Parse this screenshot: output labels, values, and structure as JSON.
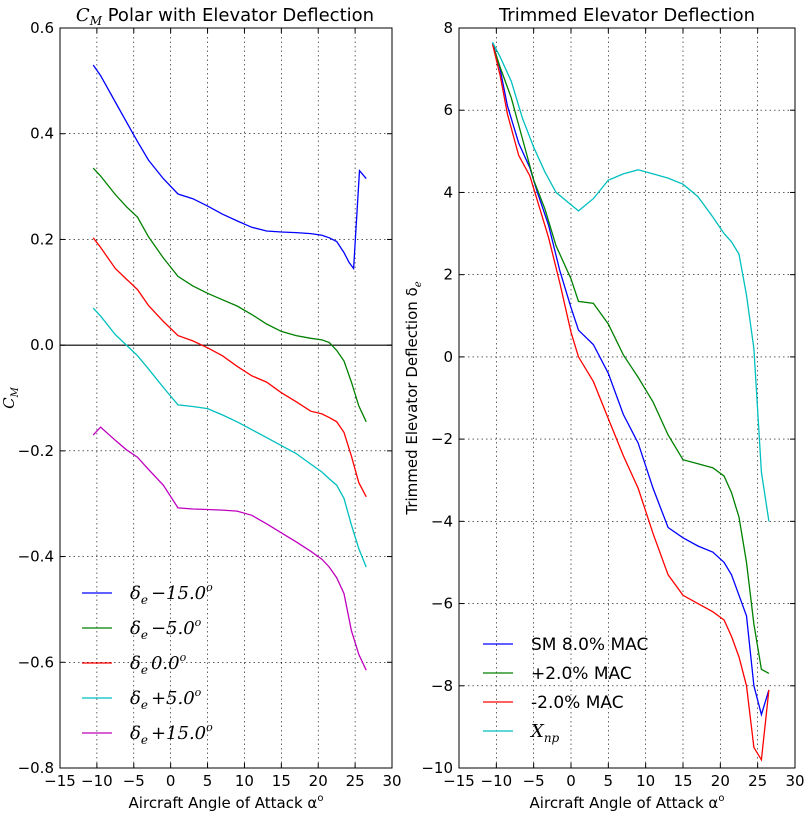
{
  "chart_data": [
    {
      "type": "line",
      "title": "C_M  Polar with Elevator Deflection",
      "title_math": "C",
      "title_math_sub": "M",
      "title_rest": "  Polar with Elevator Deflection",
      "xlabel": "Aircraft Angle of Attack α",
      "xlabel_sup": "o",
      "ylabel": "C",
      "ylabel_sub": "M",
      "xlim": [
        -15,
        30
      ],
      "ylim": [
        -0.8,
        0.6
      ],
      "xticks": [
        "−15",
        "−10",
        "−5",
        "0",
        "5",
        "10",
        "15",
        "20",
        "25",
        "30"
      ],
      "yticks": [
        "−0.8",
        "−0.6",
        "−0.4",
        "−0.2",
        "0.0",
        "0.2",
        "0.4",
        "0.6"
      ],
      "grid": true,
      "zero_line": true,
      "legend_position": "lower-left",
      "series": [
        {
          "name": "δe −15.0°",
          "label_main": "δ",
          "label_sub": "e",
          "label_val": "−15.0",
          "label_sup": "o",
          "color": "#0000ff",
          "points": [
            [
              -10.5,
              0.53
            ],
            [
              -9.5,
              0.51
            ],
            [
              -7.5,
              0.46
            ],
            [
              -5.5,
              0.41
            ],
            [
              -4.5,
              0.385
            ],
            [
              -3,
              0.35
            ],
            [
              -1,
              0.315
            ],
            [
              1,
              0.286
            ],
            [
              3,
              0.277
            ],
            [
              5,
              0.263
            ],
            [
              7,
              0.248
            ],
            [
              9,
              0.235
            ],
            [
              11,
              0.223
            ],
            [
              13,
              0.216
            ],
            [
              15,
              0.214
            ],
            [
              17,
              0.213
            ],
            [
              19,
              0.211
            ],
            [
              20.5,
              0.208
            ],
            [
              21.5,
              0.203
            ],
            [
              22.5,
              0.196
            ],
            [
              23.5,
              0.175
            ],
            [
              24.2,
              0.156
            ],
            [
              24.8,
              0.145
            ],
            [
              25.6,
              0.33
            ],
            [
              26.5,
              0.315
            ]
          ]
        },
        {
          "name": "δe −5.0°",
          "label_main": "δ",
          "label_sub": "e",
          "label_val": "−5.0",
          "label_sup": "o",
          "color": "#008000",
          "points": [
            [
              -10.5,
              0.335
            ],
            [
              -9.5,
              0.32
            ],
            [
              -7.5,
              0.285
            ],
            [
              -6,
              0.262
            ],
            [
              -4.5,
              0.242
            ],
            [
              -3,
              0.205
            ],
            [
              -1,
              0.165
            ],
            [
              1,
              0.13
            ],
            [
              3,
              0.112
            ],
            [
              5,
              0.098
            ],
            [
              7,
              0.086
            ],
            [
              9,
              0.074
            ],
            [
              11,
              0.058
            ],
            [
              13,
              0.04
            ],
            [
              15,
              0.026
            ],
            [
              17,
              0.018
            ],
            [
              19,
              0.013
            ],
            [
              20.5,
              0.01
            ],
            [
              21.5,
              0.005
            ],
            [
              22.5,
              -0.01
            ],
            [
              23.5,
              -0.03
            ],
            [
              24.5,
              -0.07
            ],
            [
              25.5,
              -0.115
            ],
            [
              26.5,
              -0.145
            ]
          ]
        },
        {
          "name": "δe 0.0°",
          "label_main": "δ",
          "label_sub": "e",
          "label_val": "0.0",
          "label_sup": "o",
          "color": "#ff0000",
          "points": [
            [
              -10.5,
              0.203
            ],
            [
              -9.5,
              0.185
            ],
            [
              -7.5,
              0.145
            ],
            [
              -6,
              0.125
            ],
            [
              -4.5,
              0.105
            ],
            [
              -3,
              0.075
            ],
            [
              -1,
              0.045
            ],
            [
              1,
              0.018
            ],
            [
              3,
              0.008
            ],
            [
              5,
              -0.005
            ],
            [
              7,
              -0.02
            ],
            [
              9,
              -0.04
            ],
            [
              11,
              -0.058
            ],
            [
              13,
              -0.07
            ],
            [
              15,
              -0.09
            ],
            [
              17,
              -0.107
            ],
            [
              19,
              -0.125
            ],
            [
              20.5,
              -0.13
            ],
            [
              21.5,
              -0.137
            ],
            [
              22.5,
              -0.145
            ],
            [
              23.5,
              -0.165
            ],
            [
              24.5,
              -0.21
            ],
            [
              25.5,
              -0.26
            ],
            [
              26.5,
              -0.287
            ]
          ]
        },
        {
          "name": "δe +5.0°",
          "label_main": "δ",
          "label_sub": "e",
          "label_val": "+5.0",
          "label_sup": "o",
          "color": "#00bfbf",
          "points": [
            [
              -10.5,
              0.07
            ],
            [
              -9.5,
              0.055
            ],
            [
              -7.5,
              0.02
            ],
            [
              -6,
              0.0
            ],
            [
              -4.5,
              -0.02
            ],
            [
              -3,
              -0.045
            ],
            [
              -1,
              -0.08
            ],
            [
              1,
              -0.113
            ],
            [
              3,
              -0.116
            ],
            [
              5,
              -0.12
            ],
            [
              7,
              -0.132
            ],
            [
              9,
              -0.145
            ],
            [
              11,
              -0.16
            ],
            [
              13,
              -0.175
            ],
            [
              15,
              -0.19
            ],
            [
              17,
              -0.205
            ],
            [
              19,
              -0.225
            ],
            [
              20.5,
              -0.24
            ],
            [
              21.5,
              -0.253
            ],
            [
              22.5,
              -0.265
            ],
            [
              23.5,
              -0.29
            ],
            [
              24.5,
              -0.34
            ],
            [
              25.5,
              -0.385
            ],
            [
              26.5,
              -0.42
            ]
          ]
        },
        {
          "name": "δe +15.0°",
          "label_main": "δ",
          "label_sub": "e",
          "label_val": "+15.0",
          "label_sup": "o",
          "color": "#bf00bf",
          "points": [
            [
              -10.5,
              -0.17
            ],
            [
              -9.5,
              -0.155
            ],
            [
              -7.5,
              -0.18
            ],
            [
              -6,
              -0.198
            ],
            [
              -4.5,
              -0.212
            ],
            [
              -3,
              -0.235
            ],
            [
              -1,
              -0.265
            ],
            [
              1,
              -0.308
            ],
            [
              3,
              -0.31
            ],
            [
              5,
              -0.311
            ],
            [
              7,
              -0.312
            ],
            [
              9,
              -0.314
            ],
            [
              11,
              -0.322
            ],
            [
              13,
              -0.338
            ],
            [
              15,
              -0.355
            ],
            [
              17,
              -0.372
            ],
            [
              19,
              -0.39
            ],
            [
              20.5,
              -0.405
            ],
            [
              21.5,
              -0.42
            ],
            [
              22.5,
              -0.44
            ],
            [
              23.5,
              -0.47
            ],
            [
              24.5,
              -0.54
            ],
            [
              25.5,
              -0.585
            ],
            [
              26.5,
              -0.615
            ]
          ]
        }
      ]
    },
    {
      "type": "line",
      "title": "Trimmed Elevator Deflection",
      "xlabel": "Aircraft Angle of Attack α",
      "xlabel_sup": "o",
      "ylabel": "Trimmed Elevator Deflection δ",
      "ylabel_sub": "e",
      "xlim": [
        -15,
        30
      ],
      "ylim": [
        -10,
        8
      ],
      "xticks": [
        "−15",
        "−10",
        "−5",
        "0",
        "5",
        "10",
        "15",
        "20",
        "25",
        "30"
      ],
      "yticks": [
        "−10",
        "−8",
        "−6",
        "−4",
        "−2",
        "0",
        "2",
        "4",
        "6",
        "8"
      ],
      "grid": true,
      "legend_position": "lower-left",
      "series": [
        {
          "name": "SM 8.0% MAC",
          "color": "#0000ff",
          "points": [
            [
              -10.5,
              7.65
            ],
            [
              -9.5,
              7.0
            ],
            [
              -8.5,
              6.1
            ],
            [
              -7,
              5.2
            ],
            [
              -5.5,
              4.6
            ],
            [
              -4.5,
              4.0
            ],
            [
              -3,
              3.2
            ],
            [
              -1.5,
              2.1
            ],
            [
              0,
              1.2
            ],
            [
              1,
              0.65
            ],
            [
              3,
              0.3
            ],
            [
              5,
              -0.4
            ],
            [
              7,
              -1.4
            ],
            [
              9,
              -2.1
            ],
            [
              11,
              -3.2
            ],
            [
              13,
              -4.15
            ],
            [
              15,
              -4.4
            ],
            [
              17,
              -4.6
            ],
            [
              19,
              -4.75
            ],
            [
              20.5,
              -5.0
            ],
            [
              21.5,
              -5.3
            ],
            [
              22.5,
              -5.8
            ],
            [
              23.5,
              -6.3
            ],
            [
              24.5,
              -8.0
            ],
            [
              25.5,
              -8.7
            ],
            [
              26.5,
              -8.1
            ]
          ]
        },
        {
          "name": "+2.0% MAC",
          "color": "#008000",
          "points": [
            [
              -10.5,
              7.6
            ],
            [
              -9.5,
              7.05
            ],
            [
              -8,
              6.3
            ],
            [
              -6.5,
              5.3
            ],
            [
              -5,
              4.3
            ],
            [
              -3.5,
              3.6
            ],
            [
              -2,
              2.7
            ],
            [
              0,
              1.9
            ],
            [
              1,
              1.35
            ],
            [
              3,
              1.3
            ],
            [
              5,
              0.8
            ],
            [
              7,
              0.05
            ],
            [
              9,
              -0.5
            ],
            [
              11,
              -1.1
            ],
            [
              13,
              -1.9
            ],
            [
              15,
              -2.5
            ],
            [
              17,
              -2.6
            ],
            [
              19,
              -2.7
            ],
            [
              20.5,
              -2.9
            ],
            [
              21.5,
              -3.3
            ],
            [
              22.5,
              -3.9
            ],
            [
              23.5,
              -5.0
            ],
            [
              24.5,
              -6.5
            ],
            [
              25.5,
              -7.6
            ],
            [
              26.5,
              -7.7
            ]
          ]
        },
        {
          "name": " -2.0% MAC",
          "color": "#ff0000",
          "points": [
            [
              -10.5,
              7.6
            ],
            [
              -9.5,
              6.85
            ],
            [
              -8.5,
              5.9
            ],
            [
              -7,
              4.9
            ],
            [
              -5.5,
              4.4
            ],
            [
              -4.5,
              3.8
            ],
            [
              -3,
              2.9
            ],
            [
              -1.5,
              1.8
            ],
            [
              0,
              0.6
            ],
            [
              1,
              0.0
            ],
            [
              3,
              -0.6
            ],
            [
              5,
              -1.5
            ],
            [
              7,
              -2.4
            ],
            [
              9,
              -3.2
            ],
            [
              11,
              -4.3
            ],
            [
              13,
              -5.3
            ],
            [
              15,
              -5.8
            ],
            [
              17,
              -6.0
            ],
            [
              19,
              -6.2
            ],
            [
              20.5,
              -6.4
            ],
            [
              21.5,
              -6.8
            ],
            [
              22.5,
              -7.3
            ],
            [
              23.5,
              -8.0
            ],
            [
              24.5,
              -9.5
            ],
            [
              25.5,
              -9.8
            ],
            [
              26.5,
              -8.1
            ]
          ]
        },
        {
          "name": "X_np",
          "label_main": "X",
          "label_sub": "np",
          "color": "#00bfbf",
          "points": [
            [
              -10.5,
              7.65
            ],
            [
              -9.5,
              7.3
            ],
            [
              -8,
              6.7
            ],
            [
              -6.5,
              5.8
            ],
            [
              -5,
              5.1
            ],
            [
              -3.5,
              4.5
            ],
            [
              -2,
              4.0
            ],
            [
              0,
              3.7
            ],
            [
              1,
              3.55
            ],
            [
              3,
              3.85
            ],
            [
              5,
              4.3
            ],
            [
              7,
              4.45
            ],
            [
              9,
              4.55
            ],
            [
              11,
              4.45
            ],
            [
              13,
              4.35
            ],
            [
              15,
              4.2
            ],
            [
              17,
              3.9
            ],
            [
              19,
              3.4
            ],
            [
              20.5,
              3.0
            ],
            [
              21.5,
              2.8
            ],
            [
              22.5,
              2.5
            ],
            [
              23.5,
              1.5
            ],
            [
              24.5,
              0.2
            ],
            [
              25.5,
              -2.8
            ],
            [
              26.5,
              -4.0
            ]
          ]
        }
      ]
    }
  ]
}
